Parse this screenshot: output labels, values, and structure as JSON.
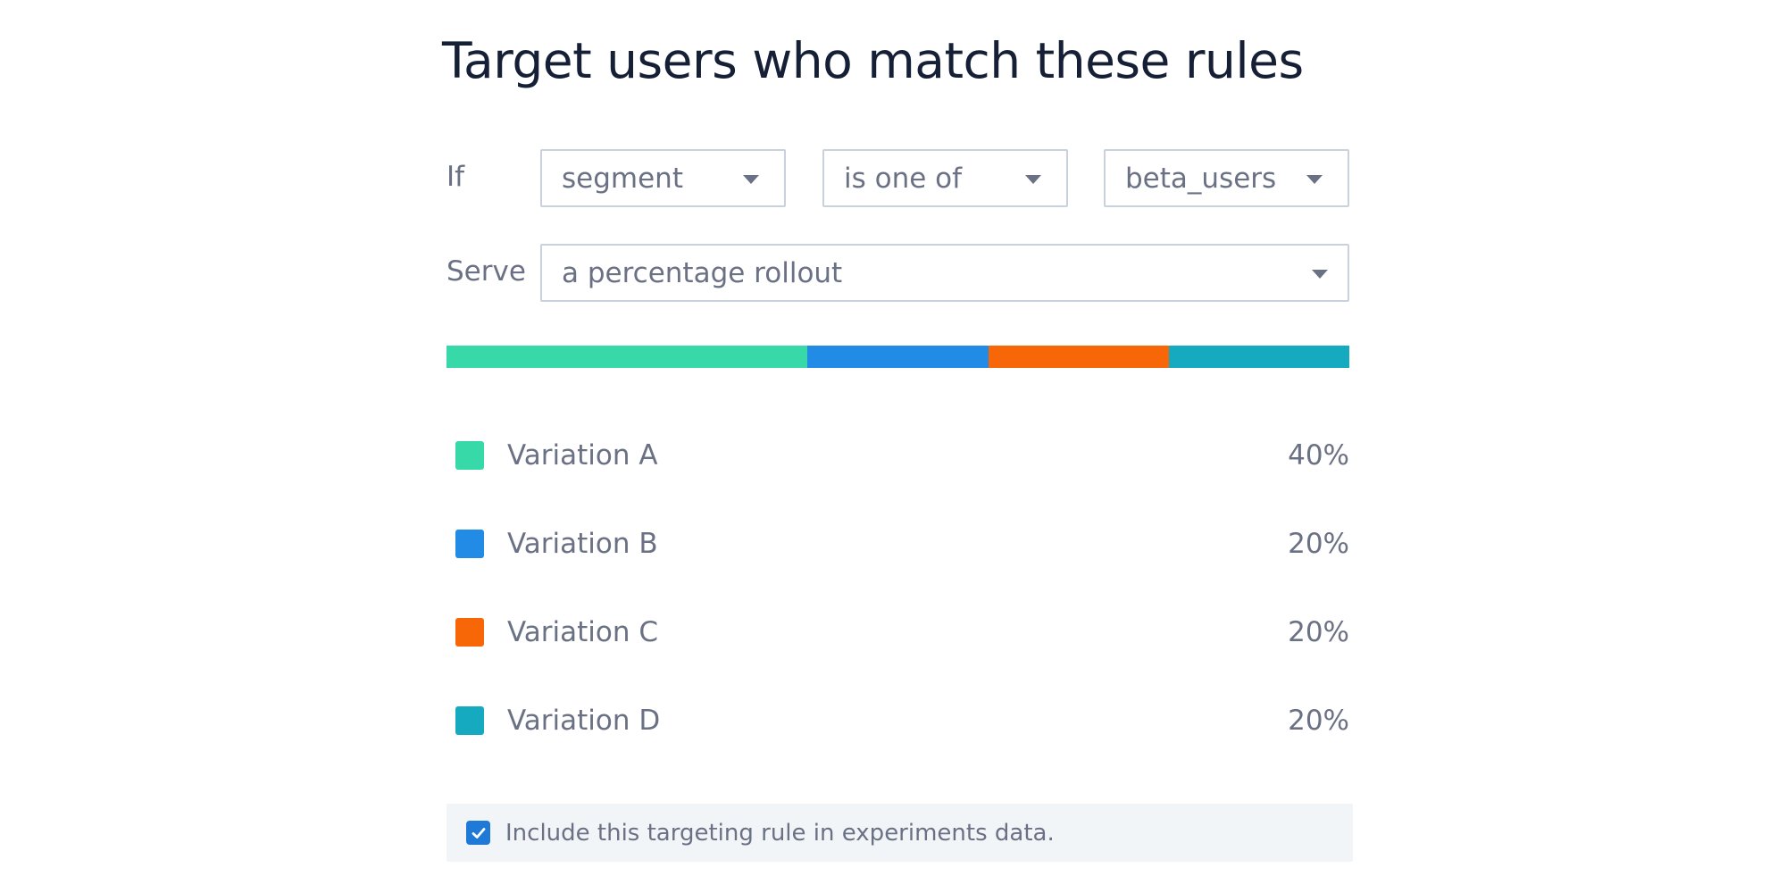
{
  "title": "Target users who match these rules",
  "rule": {
    "if_label": "If",
    "attribute": "segment",
    "operator": "is one of",
    "value": "beta_users"
  },
  "serve": {
    "label": "Serve",
    "value": "a percentage rollout"
  },
  "variations": [
    {
      "name": "Variation A",
      "percent_text": "40%",
      "percent": 40,
      "color": "#38d9a9"
    },
    {
      "name": "Variation B",
      "percent_text": "20%",
      "percent": 20,
      "color": "#228be6"
    },
    {
      "name": "Variation C",
      "percent_text": "20%",
      "percent": 20,
      "color": "#f76707"
    },
    {
      "name": "Variation D",
      "percent_text": "20%",
      "percent": 20,
      "color": "#15aabf"
    }
  ],
  "experiments": {
    "checked": true,
    "label": "Include this targeting rule in experiments data."
  },
  "icons": {
    "dropdown": "caret-down-icon",
    "checkbox": "checkmark-icon"
  }
}
